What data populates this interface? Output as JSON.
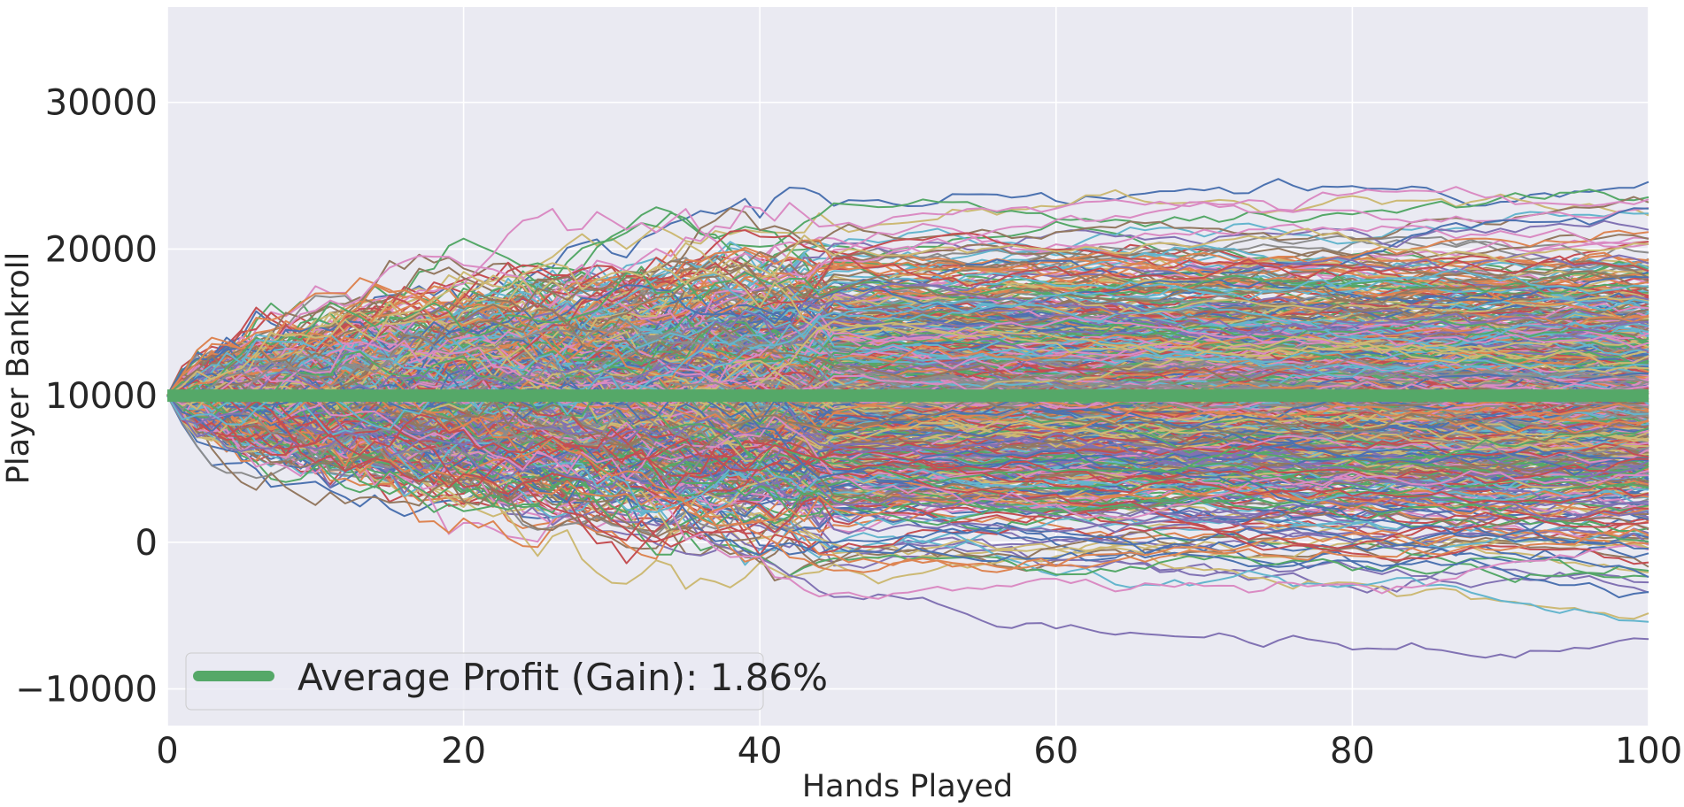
{
  "chart_data": {
    "type": "line",
    "title": "",
    "xlabel": "Hands Played",
    "ylabel": "Player Bankroll",
    "xlim": [
      0,
      100
    ],
    "ylim": [
      -12500,
      36500
    ],
    "xticks": [
      0,
      20,
      40,
      60,
      80,
      100
    ],
    "yticks": [
      -10000,
      0,
      10000,
      20000,
      30000
    ],
    "xtick_labels": [
      "0",
      "20",
      "40",
      "60",
      "80",
      "100"
    ],
    "ytick_labels": [
      "−10000",
      "0",
      "10000",
      "20000",
      "30000"
    ],
    "grid": true,
    "background": "#eaeaf2",
    "legend_position": "lower-left",
    "starting_bankroll": 10000,
    "simulation": {
      "paths": 700,
      "hands": 100,
      "palette": [
        "#4c72b0",
        "#dd8452",
        "#55a868",
        "#c44e52",
        "#8172b3",
        "#937860",
        "#da8bc3",
        "#8c8c8c",
        "#ccb974",
        "#64b5cd"
      ]
    },
    "series": [
      {
        "name": "Average Profit (Gain): 1.86%",
        "color": "#55a868",
        "x": [
          0,
          100
        ],
        "values": [
          10000,
          10000
        ]
      }
    ]
  }
}
